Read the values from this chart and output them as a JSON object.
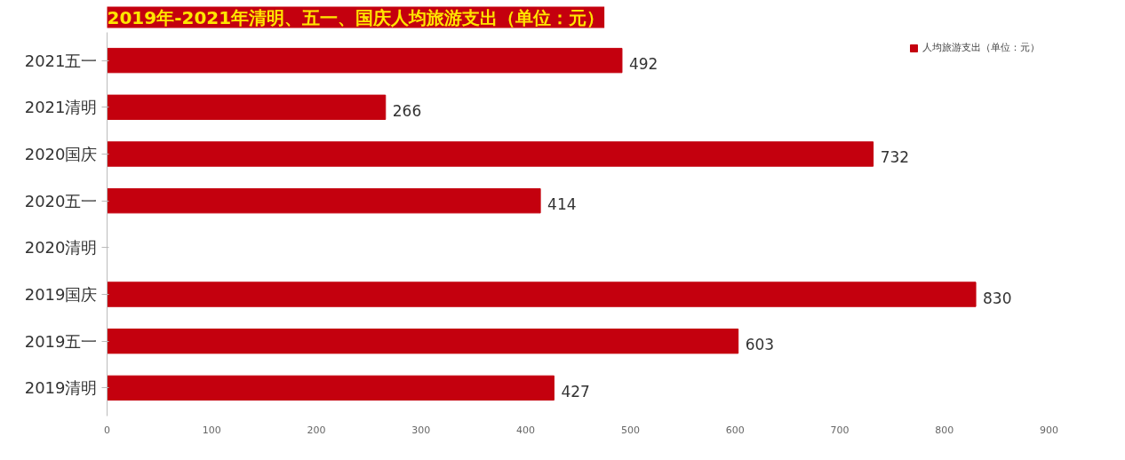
{
  "chart_data": {
    "type": "bar",
    "orientation": "horizontal",
    "title": "2019年-2021年清明、五一、国庆人均旅游支出（单位：元）",
    "categories": [
      "2021五一",
      "2021清明",
      "2020国庆",
      "2020五一",
      "2020清明",
      "2019国庆",
      "2019五一",
      "2019清明"
    ],
    "series": [
      {
        "name": "人均旅游支出（单位：元）",
        "color": "#c4000e",
        "values": [
          492,
          266,
          732,
          414,
          null,
          830,
          603,
          427
        ]
      }
    ],
    "xlim": [
      0,
      900
    ],
    "xticks": [
      0,
      100,
      200,
      300,
      400,
      500,
      600,
      700,
      800,
      900
    ],
    "data_labels": true,
    "legend": "top right",
    "grid": false
  }
}
